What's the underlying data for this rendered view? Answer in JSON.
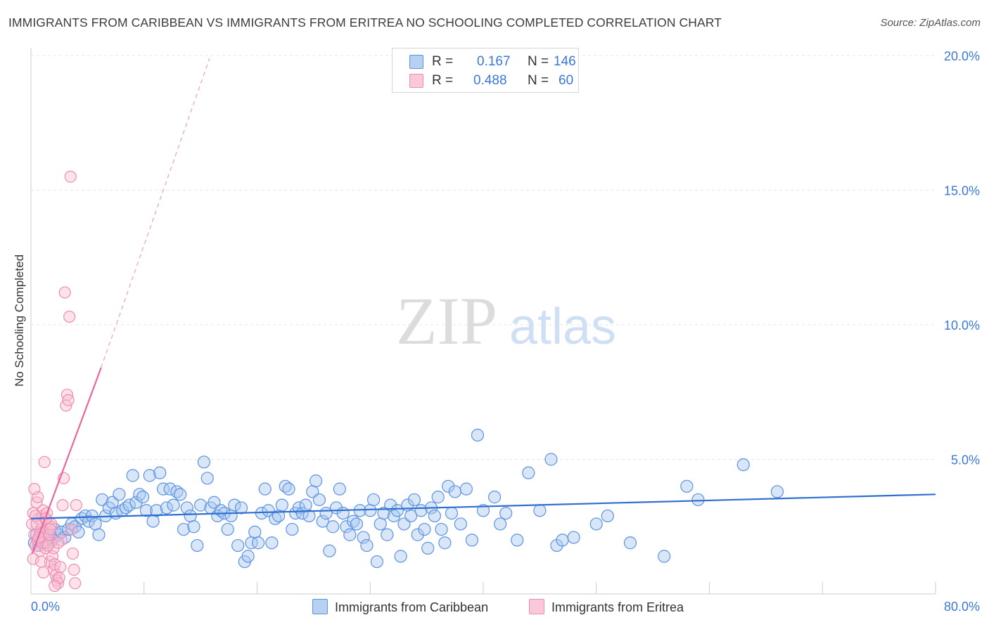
{
  "title": "IMMIGRANTS FROM CARIBBEAN VS IMMIGRANTS FROM ERITREA NO SCHOOLING COMPLETED CORRELATION CHART",
  "source": "Source: ZipAtlas.com",
  "watermark": {
    "zip": "ZIP",
    "atlas": "atlas"
  },
  "legend": {
    "r_label": "R =",
    "n_label": "N =",
    "rows": [
      {
        "r": "0.167",
        "n": "146"
      },
      {
        "r": "0.488",
        "n": "60"
      }
    ]
  },
  "colors": {
    "caribbean_fill": "#a9c8f0",
    "caribbean_stroke": "#5b93e0",
    "caribbean_line": "#2f6fcf",
    "eritrea_fill": "#f7bfd2",
    "eritrea_stroke": "#f08cb0",
    "eritrea_line": "#e8679a",
    "axis_text": "#3a78d8"
  },
  "chart_data": {
    "type": "scatter",
    "title": "IMMIGRANTS FROM CARIBBEAN VS IMMIGRANTS FROM ERITREA NO SCHOOLING COMPLETED CORRELATION CHART",
    "xlabel": "",
    "ylabel": "No Schooling Completed",
    "xlim": [
      0,
      80
    ],
    "ylim": [
      0,
      20
    ],
    "x_tick_labels": [
      {
        "value": 0,
        "label": "0.0%"
      },
      {
        "value": 80,
        "label": "80.0%"
      }
    ],
    "y_tick_labels": [
      {
        "value": 5,
        "label": "5.0%"
      },
      {
        "value": 10,
        "label": "10.0%"
      },
      {
        "value": 15,
        "label": "15.0%"
      },
      {
        "value": 20,
        "label": "20.0%"
      }
    ],
    "grid": true,
    "legend_position": "top-center",
    "series": [
      {
        "name": "Immigrants from Caribbean",
        "R": 0.167,
        "N": 146,
        "trend": {
          "x": [
            0,
            80
          ],
          "y": [
            2.8,
            3.7
          ]
        },
        "points": [
          [
            0.3,
            1.9
          ],
          [
            0.5,
            2.2
          ],
          [
            0.7,
            1.8
          ],
          [
            0.9,
            2.0
          ],
          [
            1.1,
            2.3
          ],
          [
            1.3,
            1.9
          ],
          [
            1.6,
            2.1
          ],
          [
            1.9,
            2.0
          ],
          [
            2.1,
            2.4
          ],
          [
            2.4,
            2.2
          ],
          [
            2.7,
            2.3
          ],
          [
            3.0,
            2.1
          ],
          [
            3.3,
            2.4
          ],
          [
            3.6,
            2.6
          ],
          [
            3.9,
            2.5
          ],
          [
            4.2,
            2.3
          ],
          [
            4.5,
            2.8
          ],
          [
            4.8,
            2.9
          ],
          [
            5.1,
            2.7
          ],
          [
            5.4,
            2.9
          ],
          [
            5.7,
            2.6
          ],
          [
            6.0,
            2.2
          ],
          [
            6.3,
            3.5
          ],
          [
            6.6,
            2.9
          ],
          [
            6.9,
            3.2
          ],
          [
            7.2,
            3.4
          ],
          [
            7.5,
            3.0
          ],
          [
            7.8,
            3.7
          ],
          [
            8.1,
            3.1
          ],
          [
            8.4,
            3.2
          ],
          [
            8.7,
            3.3
          ],
          [
            9.0,
            4.4
          ],
          [
            9.3,
            3.4
          ],
          [
            9.6,
            3.7
          ],
          [
            9.9,
            3.6
          ],
          [
            10.2,
            3.1
          ],
          [
            10.5,
            4.4
          ],
          [
            10.8,
            2.7
          ],
          [
            11.1,
            3.1
          ],
          [
            11.4,
            4.5
          ],
          [
            11.7,
            3.9
          ],
          [
            12.0,
            3.2
          ],
          [
            12.3,
            3.9
          ],
          [
            12.6,
            3.3
          ],
          [
            12.9,
            3.8
          ],
          [
            13.2,
            3.7
          ],
          [
            13.5,
            2.4
          ],
          [
            13.8,
            3.2
          ],
          [
            14.1,
            2.9
          ],
          [
            14.4,
            2.5
          ],
          [
            14.7,
            1.8
          ],
          [
            15.0,
            3.3
          ],
          [
            15.3,
            4.9
          ],
          [
            15.6,
            4.3
          ],
          [
            15.9,
            3.2
          ],
          [
            16.2,
            3.4
          ],
          [
            16.5,
            2.9
          ],
          [
            16.8,
            3.1
          ],
          [
            17.1,
            3.0
          ],
          [
            17.4,
            2.4
          ],
          [
            17.7,
            2.9
          ],
          [
            18.0,
            3.3
          ],
          [
            18.3,
            1.8
          ],
          [
            18.6,
            3.2
          ],
          [
            18.9,
            1.2
          ],
          [
            19.2,
            1.4
          ],
          [
            19.5,
            1.9
          ],
          [
            19.8,
            2.3
          ],
          [
            20.1,
            1.9
          ],
          [
            20.4,
            3.0
          ],
          [
            20.7,
            3.9
          ],
          [
            21.0,
            3.1
          ],
          [
            21.3,
            1.9
          ],
          [
            21.6,
            2.8
          ],
          [
            21.9,
            2.9
          ],
          [
            22.2,
            3.3
          ],
          [
            22.5,
            4.0
          ],
          [
            22.8,
            3.9
          ],
          [
            23.1,
            2.4
          ],
          [
            23.4,
            3.0
          ],
          [
            23.7,
            3.2
          ],
          [
            24.0,
            3.0
          ],
          [
            24.3,
            3.3
          ],
          [
            24.6,
            2.9
          ],
          [
            24.9,
            3.8
          ],
          [
            25.2,
            4.2
          ],
          [
            25.5,
            3.5
          ],
          [
            25.8,
            2.7
          ],
          [
            26.1,
            3.0
          ],
          [
            26.4,
            1.6
          ],
          [
            26.7,
            2.5
          ],
          [
            27.0,
            3.2
          ],
          [
            27.3,
            3.9
          ],
          [
            27.6,
            3.0
          ],
          [
            27.9,
            2.5
          ],
          [
            28.2,
            2.2
          ],
          [
            28.5,
            2.7
          ],
          [
            28.8,
            2.6
          ],
          [
            29.1,
            3.1
          ],
          [
            29.4,
            2.1
          ],
          [
            29.7,
            1.8
          ],
          [
            30.0,
            3.1
          ],
          [
            30.3,
            3.5
          ],
          [
            30.6,
            1.2
          ],
          [
            30.9,
            2.6
          ],
          [
            31.2,
            3.0
          ],
          [
            31.5,
            2.2
          ],
          [
            31.8,
            3.3
          ],
          [
            32.1,
            2.9
          ],
          [
            32.4,
            3.1
          ],
          [
            32.7,
            1.4
          ],
          [
            33.0,
            2.6
          ],
          [
            33.3,
            3.3
          ],
          [
            33.6,
            2.9
          ],
          [
            33.9,
            3.5
          ],
          [
            34.2,
            2.2
          ],
          [
            34.5,
            3.1
          ],
          [
            34.8,
            2.4
          ],
          [
            35.1,
            1.7
          ],
          [
            35.4,
            3.2
          ],
          [
            35.7,
            2.9
          ],
          [
            36.0,
            3.6
          ],
          [
            36.3,
            2.4
          ],
          [
            36.6,
            1.9
          ],
          [
            36.9,
            4.0
          ],
          [
            37.2,
            3.0
          ],
          [
            37.5,
            3.8
          ],
          [
            38.0,
            2.6
          ],
          [
            38.5,
            3.9
          ],
          [
            39.0,
            2.0
          ],
          [
            39.5,
            5.9
          ],
          [
            40.0,
            3.1
          ],
          [
            41.0,
            3.6
          ],
          [
            41.5,
            2.6
          ],
          [
            42.0,
            3.0
          ],
          [
            43.0,
            2.0
          ],
          [
            44.0,
            4.5
          ],
          [
            45.0,
            3.1
          ],
          [
            46.0,
            5.0
          ],
          [
            46.5,
            1.8
          ],
          [
            47.0,
            2.0
          ],
          [
            48.0,
            2.1
          ],
          [
            50.0,
            2.6
          ],
          [
            51.0,
            2.9
          ],
          [
            53.0,
            1.9
          ],
          [
            56.0,
            1.4
          ],
          [
            58.0,
            4.0
          ],
          [
            59.0,
            3.5
          ],
          [
            63.0,
            4.8
          ],
          [
            66.0,
            3.8
          ]
        ]
      },
      {
        "name": "Immigrants from Eritrea",
        "R": 0.488,
        "N": 60,
        "trend": {
          "x": [
            0.1,
            6.2
          ],
          "y": [
            1.5,
            8.4
          ]
        },
        "trend_extrapolated": {
          "x": [
            6.2,
            15.8
          ],
          "y": [
            8.4,
            19.9
          ]
        },
        "points": [
          [
            0.1,
            2.6
          ],
          [
            0.2,
            3.0
          ],
          [
            0.3,
            2.2
          ],
          [
            0.4,
            1.8
          ],
          [
            0.5,
            3.4
          ],
          [
            0.6,
            2.0
          ],
          [
            0.7,
            2.8
          ],
          [
            0.8,
            1.6
          ],
          [
            0.9,
            2.4
          ],
          [
            1.0,
            2.9
          ],
          [
            1.1,
            3.1
          ],
          [
            1.2,
            2.1
          ],
          [
            1.3,
            1.7
          ],
          [
            1.4,
            2.7
          ],
          [
            1.5,
            2.3
          ],
          [
            1.6,
            1.9
          ],
          [
            1.7,
            1.2
          ],
          [
            1.8,
            2.5
          ],
          [
            1.9,
            1.4
          ],
          [
            2.0,
            0.9
          ],
          [
            2.1,
            1.1
          ],
          [
            2.2,
            0.7
          ],
          [
            2.3,
            0.5
          ],
          [
            2.4,
            0.4
          ],
          [
            2.5,
            0.6
          ],
          [
            2.6,
            1.0
          ],
          [
            2.7,
            2.0
          ],
          [
            2.8,
            3.3
          ],
          [
            2.9,
            4.3
          ],
          [
            3.0,
            11.2
          ],
          [
            3.1,
            7.0
          ],
          [
            3.2,
            7.4
          ],
          [
            3.3,
            7.2
          ],
          [
            3.4,
            10.3
          ],
          [
            3.5,
            15.5
          ],
          [
            3.6,
            2.4
          ],
          [
            3.7,
            1.5
          ],
          [
            3.8,
            0.9
          ],
          [
            3.9,
            0.4
          ],
          [
            4.0,
            3.3
          ],
          [
            0.2,
            1.3
          ],
          [
            0.4,
            2.9
          ],
          [
            0.6,
            3.6
          ],
          [
            0.8,
            2.3
          ],
          [
            1.0,
            1.9
          ],
          [
            1.2,
            4.9
          ],
          [
            1.4,
            3.0
          ],
          [
            1.6,
            2.2
          ],
          [
            1.8,
            2.6
          ],
          [
            2.0,
            1.7
          ],
          [
            0.3,
            3.9
          ],
          [
            0.5,
            2.6
          ],
          [
            0.7,
            2.1
          ],
          [
            0.9,
            1.2
          ],
          [
            1.1,
            0.8
          ],
          [
            1.3,
            2.8
          ],
          [
            1.5,
            1.8
          ],
          [
            1.7,
            2.4
          ],
          [
            2.1,
            0.3
          ],
          [
            2.4,
            1.9
          ]
        ]
      }
    ]
  },
  "bottom_legend": [
    "Immigrants from Caribbean",
    "Immigrants from Eritrea"
  ]
}
